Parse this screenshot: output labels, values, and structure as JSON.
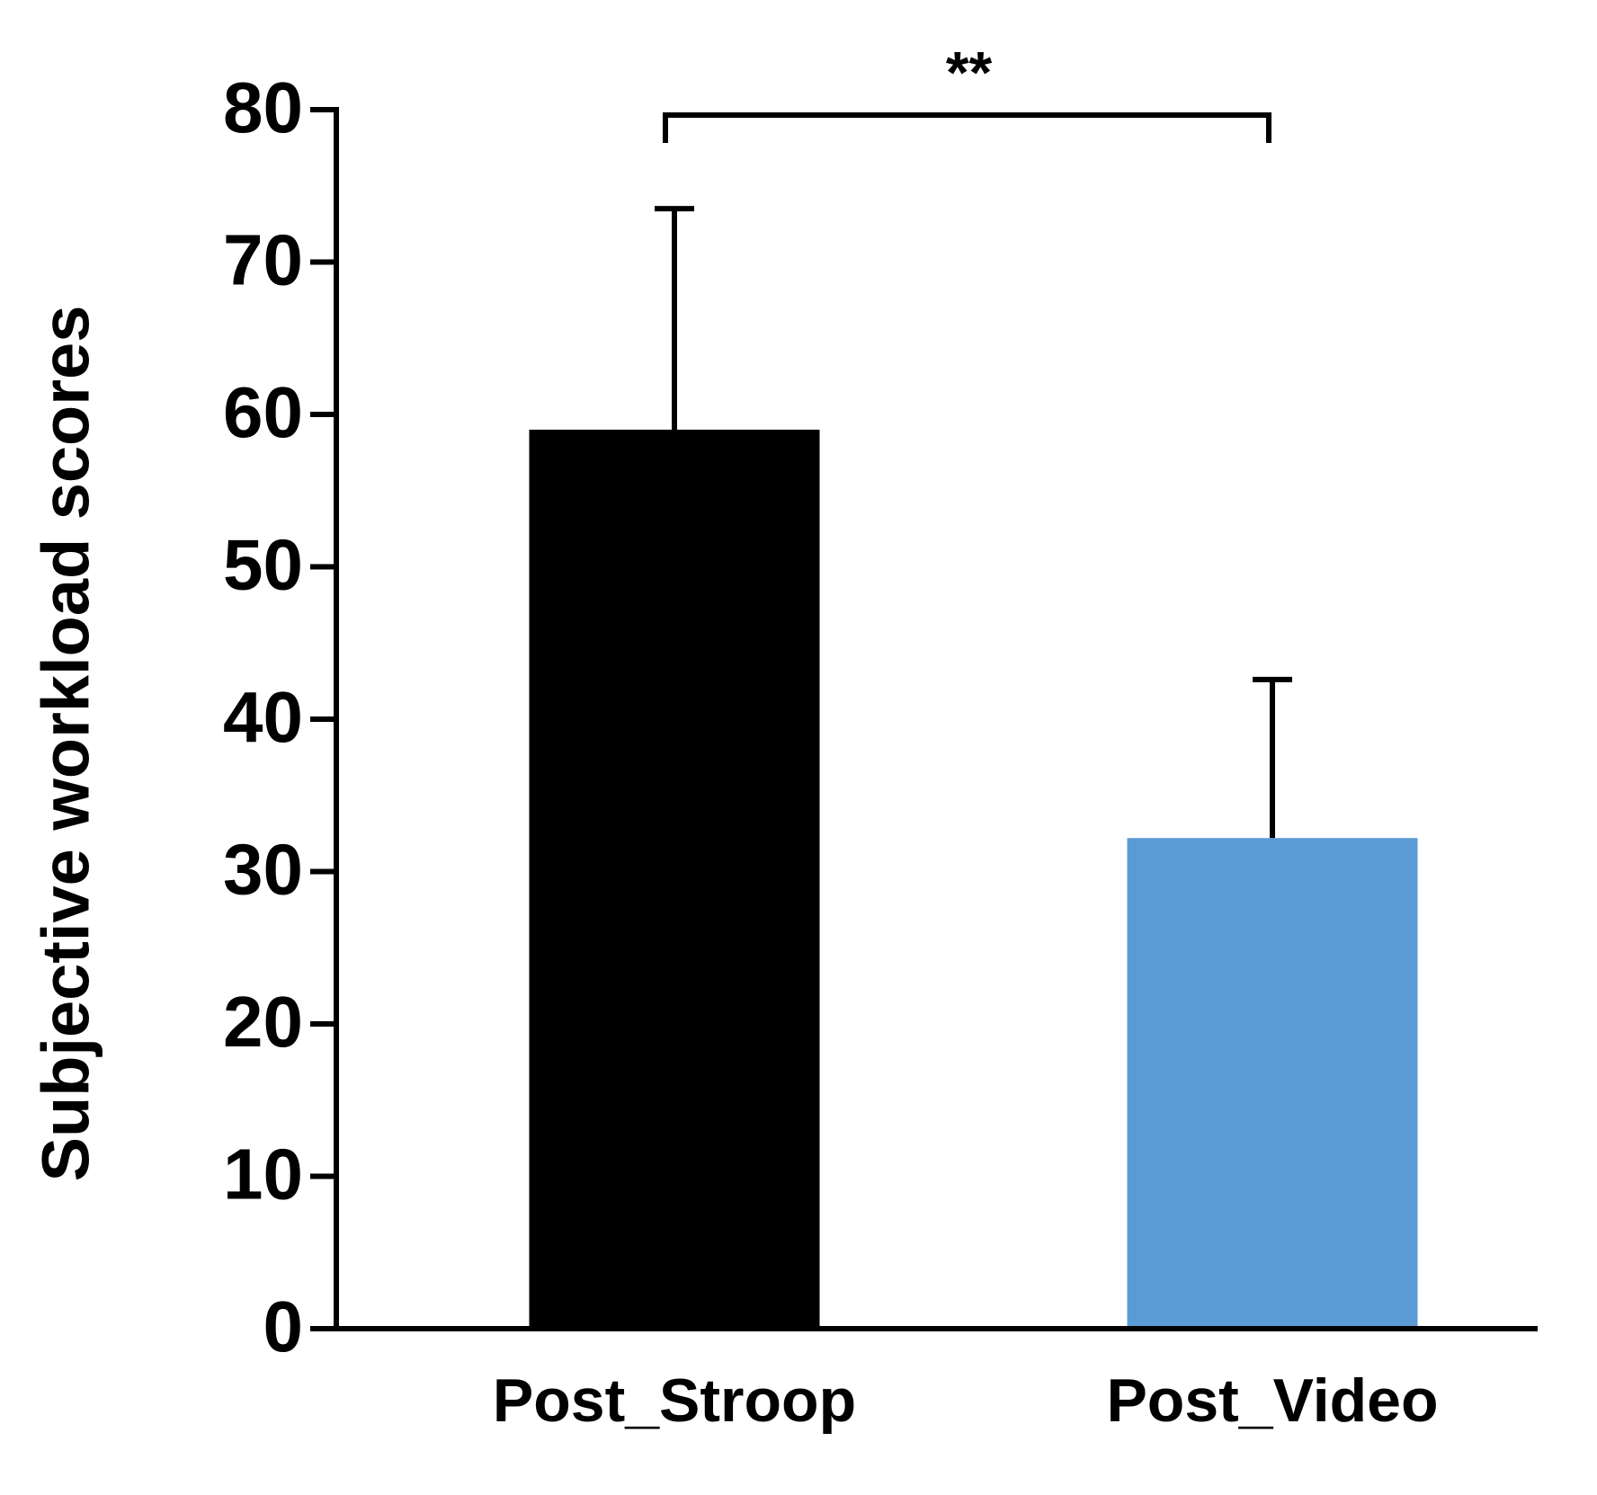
{
  "chart_data": {
    "type": "bar",
    "y_label": "Subjective workload scores",
    "categories": [
      "Post_Stroop",
      "Post_Video"
    ],
    "values": [
      59,
      32.2
    ],
    "errors": [
      14.5,
      10.4
    ],
    "colors": [
      "#000000",
      "#5b9bd5"
    ],
    "ylim": [
      0,
      80
    ],
    "yticks": [
      0,
      10,
      20,
      30,
      40,
      50,
      60,
      70,
      80
    ],
    "annotation": "**"
  }
}
